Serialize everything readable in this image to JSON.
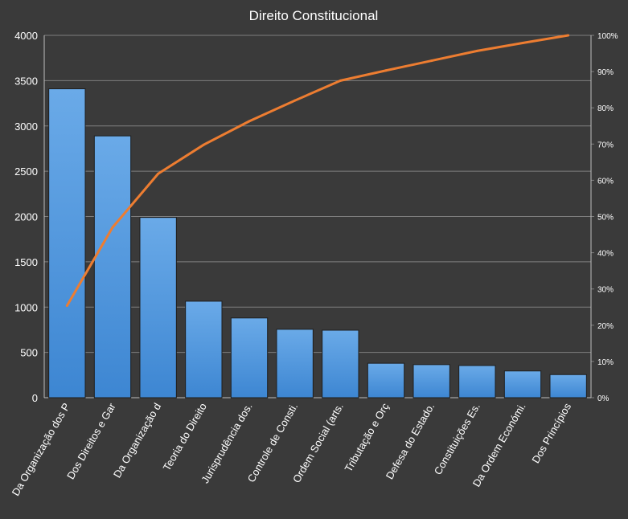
{
  "chart_data": {
    "type": "bar",
    "title": "Direito Constitucional",
    "xlabel": "",
    "ylabel": "",
    "ylim": [
      0,
      4000
    ],
    "y_ticks": [
      "0",
      "500",
      "1000",
      "1500",
      "2000",
      "2500",
      "3000",
      "3500",
      "4000"
    ],
    "y2lim": [
      0,
      100
    ],
    "y2_ticks": [
      "0%",
      "10%",
      "20%",
      "30%",
      "40%",
      "50%",
      "60%",
      "70%",
      "80%",
      "90%",
      "100%"
    ],
    "grid": "horizontal",
    "legend": "none",
    "categories": [
      "Da Organização dos P",
      "Dos Direitos e Gar",
      "Da Organização d",
      "Teoria do Direito",
      "Jurisprudência dos.",
      "Controle de Consti.",
      "Ordem Social (arts.",
      "Tributação e Orç",
      "Defesa do Estado.",
      "Constituições Es.",
      "Da Ordem Económi.",
      "Dos Princípios"
    ],
    "series": [
      {
        "type": "bar",
        "axis": "left",
        "values": [
          3410,
          2890,
          1990,
          1065,
          880,
          755,
          745,
          380,
          365,
          355,
          295,
          255
        ]
      },
      {
        "type": "line",
        "axis": "right",
        "values": [
          25.4,
          47,
          61.8,
          69.8,
          76.3,
          82,
          87.5,
          90.3,
          93,
          95.7,
          97.9,
          100
        ]
      }
    ],
    "colors": {
      "background": "#3a3a3a",
      "bar_fill_top": "#6aaae8",
      "bar_fill_bottom": "#3d86d2",
      "bar_stroke": "#1f1f1f",
      "line": "#ed7d31",
      "grid": "#7f7f7f",
      "text": "#ffffff"
    }
  }
}
